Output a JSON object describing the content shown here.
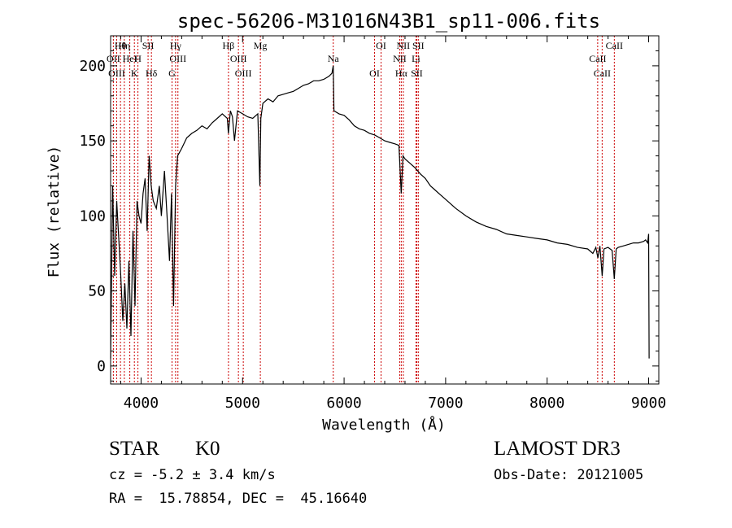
{
  "chart_data": {
    "type": "line",
    "title": "spec-56206-M31016N43B1_sp11-006.fits",
    "xlabel": "Wavelength (Å)",
    "ylabel": "Flux (relative)",
    "xlim": [
      3700,
      9100
    ],
    "ylim": [
      -12,
      220
    ],
    "x_ticks": [
      4000,
      5000,
      6000,
      7000,
      8000,
      9000
    ],
    "x_tick_labels": [
      "4000",
      "5000",
      "6000",
      "7000",
      "8000",
      "9000"
    ],
    "y_ticks": [
      0,
      50,
      100,
      150,
      200
    ],
    "y_tick_labels": [
      "0",
      "50",
      "100",
      "150",
      "200"
    ],
    "series": [
      {
        "name": "flux",
        "x": [
          3700,
          3720,
          3740,
          3760,
          3780,
          3800,
          3820,
          3840,
          3860,
          3880,
          3900,
          3920,
          3940,
          3960,
          3980,
          4000,
          4020,
          4040,
          4060,
          4080,
          4100,
          4120,
          4150,
          4180,
          4200,
          4230,
          4260,
          4280,
          4300,
          4320,
          4340,
          4360,
          4400,
          4450,
          4500,
          4550,
          4600,
          4650,
          4700,
          4750,
          4800,
          4850,
          4860,
          4880,
          4900,
          4920,
          4950,
          5000,
          5050,
          5100,
          5150,
          5170,
          5180,
          5200,
          5250,
          5300,
          5350,
          5400,
          5450,
          5500,
          5550,
          5600,
          5650,
          5700,
          5750,
          5800,
          5850,
          5880,
          5893,
          5900,
          5950,
          6000,
          6050,
          6100,
          6150,
          6200,
          6250,
          6300,
          6350,
          6400,
          6450,
          6500,
          6540,
          6563,
          6580,
          6600,
          6650,
          6700,
          6750,
          6800,
          6850,
          6900,
          6950,
          7000,
          7100,
          7200,
          7300,
          7400,
          7500,
          7600,
          7700,
          7800,
          7900,
          8000,
          8100,
          8200,
          8300,
          8400,
          8450,
          8480,
          8500,
          8520,
          8542,
          8560,
          8600,
          8640,
          8662,
          8680,
          8700,
          8750,
          8800,
          8850,
          8900,
          8950,
          8970,
          8990,
          9000,
          9005
        ],
        "y": [
          5,
          120,
          60,
          110,
          85,
          60,
          30,
          55,
          25,
          70,
          20,
          90,
          40,
          110,
          100,
          95,
          115,
          125,
          90,
          140,
          120,
          110,
          105,
          120,
          100,
          130,
          95,
          70,
          115,
          40,
          120,
          140,
          145,
          152,
          155,
          157,
          160,
          158,
          162,
          165,
          168,
          165,
          155,
          170,
          166,
          150,
          170,
          168,
          166,
          165,
          168,
          120,
          165,
          175,
          178,
          176,
          180,
          181,
          182,
          183,
          185,
          187,
          188,
          190,
          190,
          191,
          193,
          195,
          200,
          170,
          168,
          167,
          164,
          160,
          158,
          157,
          155,
          154,
          152,
          150,
          149,
          148,
          147,
          115,
          140,
          138,
          135,
          132,
          128,
          125,
          120,
          117,
          114,
          111,
          105,
          100,
          96,
          93,
          91,
          88,
          87,
          86,
          85,
          84,
          82,
          81,
          79,
          78,
          75,
          79,
          72,
          80,
          60,
          78,
          79,
          77,
          58,
          78,
          79,
          80,
          81,
          82,
          82,
          83,
          84,
          82,
          88,
          5
        ]
      }
    ],
    "lines": [
      {
        "name": "Hθ",
        "wl": 3797
      },
      {
        "name": "OII",
        "wl": 3727
      },
      {
        "name": "OIII",
        "wl": 3760
      },
      {
        "name": "Hη",
        "wl": 3835
      },
      {
        "name": "HeI",
        "wl": 3889
      },
      {
        "name": "K",
        "wl": 3934
      },
      {
        "name": "SII",
        "wl": 4069
      },
      {
        "name": "H",
        "wl": 3969
      },
      {
        "name": "Hδ",
        "wl": 4102
      },
      {
        "name": "Hγ",
        "wl": 4340
      },
      {
        "name": "OIII",
        "wl": 4363
      },
      {
        "name": "G",
        "wl": 4305
      },
      {
        "name": "Hβ",
        "wl": 4861
      },
      {
        "name": "OIII",
        "wl": 4959
      },
      {
        "name": "OIII",
        "wl": 5007
      },
      {
        "name": "Mg",
        "wl": 5175
      },
      {
        "name": "Na",
        "wl": 5893
      },
      {
        "name": "OI",
        "wl": 6300
      },
      {
        "name": "OI",
        "wl": 6364
      },
      {
        "name": "NII",
        "wl": 6548
      },
      {
        "name": "Hα",
        "wl": 6563
      },
      {
        "name": "NII",
        "wl": 6583
      },
      {
        "name": "Li",
        "wl": 6708
      },
      {
        "name": "SII",
        "wl": 6716
      },
      {
        "name": "SII",
        "wl": 6731
      },
      {
        "name": "CaII",
        "wl": 8498
      },
      {
        "name": "CaII",
        "wl": 8542
      },
      {
        "name": "CaII",
        "wl": 8662
      }
    ]
  },
  "footer": {
    "object_class": "STAR",
    "subclass": "K0",
    "redshift": "cz = -5.2 ± 3.4 km/s",
    "coords": "RA =  15.78854, DEC =  45.16640",
    "survey": "LAMOST DR3",
    "obs_date": "Obs-Date: 20121005"
  },
  "line_color": "#cc0000",
  "spectrum_color": "#000000"
}
